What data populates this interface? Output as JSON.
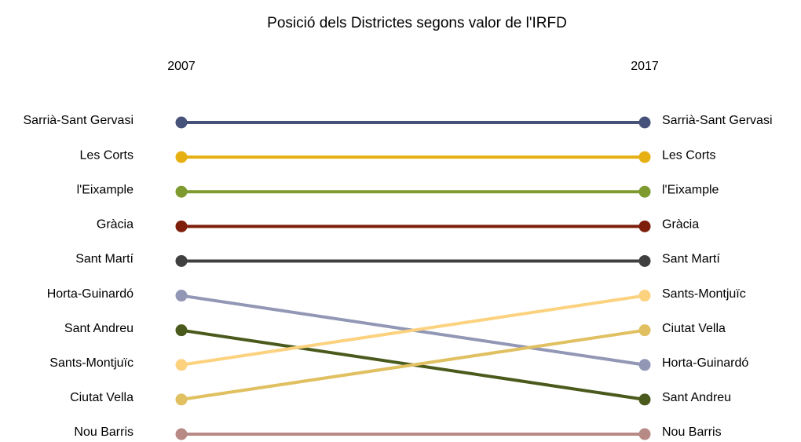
{
  "chart_data": {
    "type": "slope",
    "title": "Posició dels Districtes segons valor de l'IRFD",
    "categories": [
      "2007",
      "2017"
    ],
    "ylim": [
      1,
      10
    ],
    "y_inverted": true,
    "series": [
      {
        "name": "Sarrià-Sant Gervasi",
        "color": "#47527a",
        "values": [
          1,
          1
        ]
      },
      {
        "name": "Les Corts",
        "color": "#e6b012",
        "values": [
          2,
          2
        ]
      },
      {
        "name": "l'Eixample",
        "color": "#7f9a2e",
        "values": [
          3,
          3
        ]
      },
      {
        "name": "Gràcia",
        "color": "#7d1f0b",
        "values": [
          4,
          4
        ]
      },
      {
        "name": "Sant Martí",
        "color": "#404040",
        "values": [
          5,
          5
        ]
      },
      {
        "name": "Horta-Guinardó",
        "color": "#9197b5",
        "values": [
          6,
          8
        ]
      },
      {
        "name": "Sant Andreu",
        "color": "#4a5a1c",
        "values": [
          7,
          9
        ]
      },
      {
        "name": "Sants-Montjuïc",
        "color": "#fcd27f",
        "values": [
          8,
          6
        ]
      },
      {
        "name": "Ciutat Vella",
        "color": "#e0c060",
        "values": [
          9,
          7
        ]
      },
      {
        "name": "Nou Barris",
        "color": "#b88a86",
        "values": [
          10,
          10
        ]
      }
    ]
  }
}
